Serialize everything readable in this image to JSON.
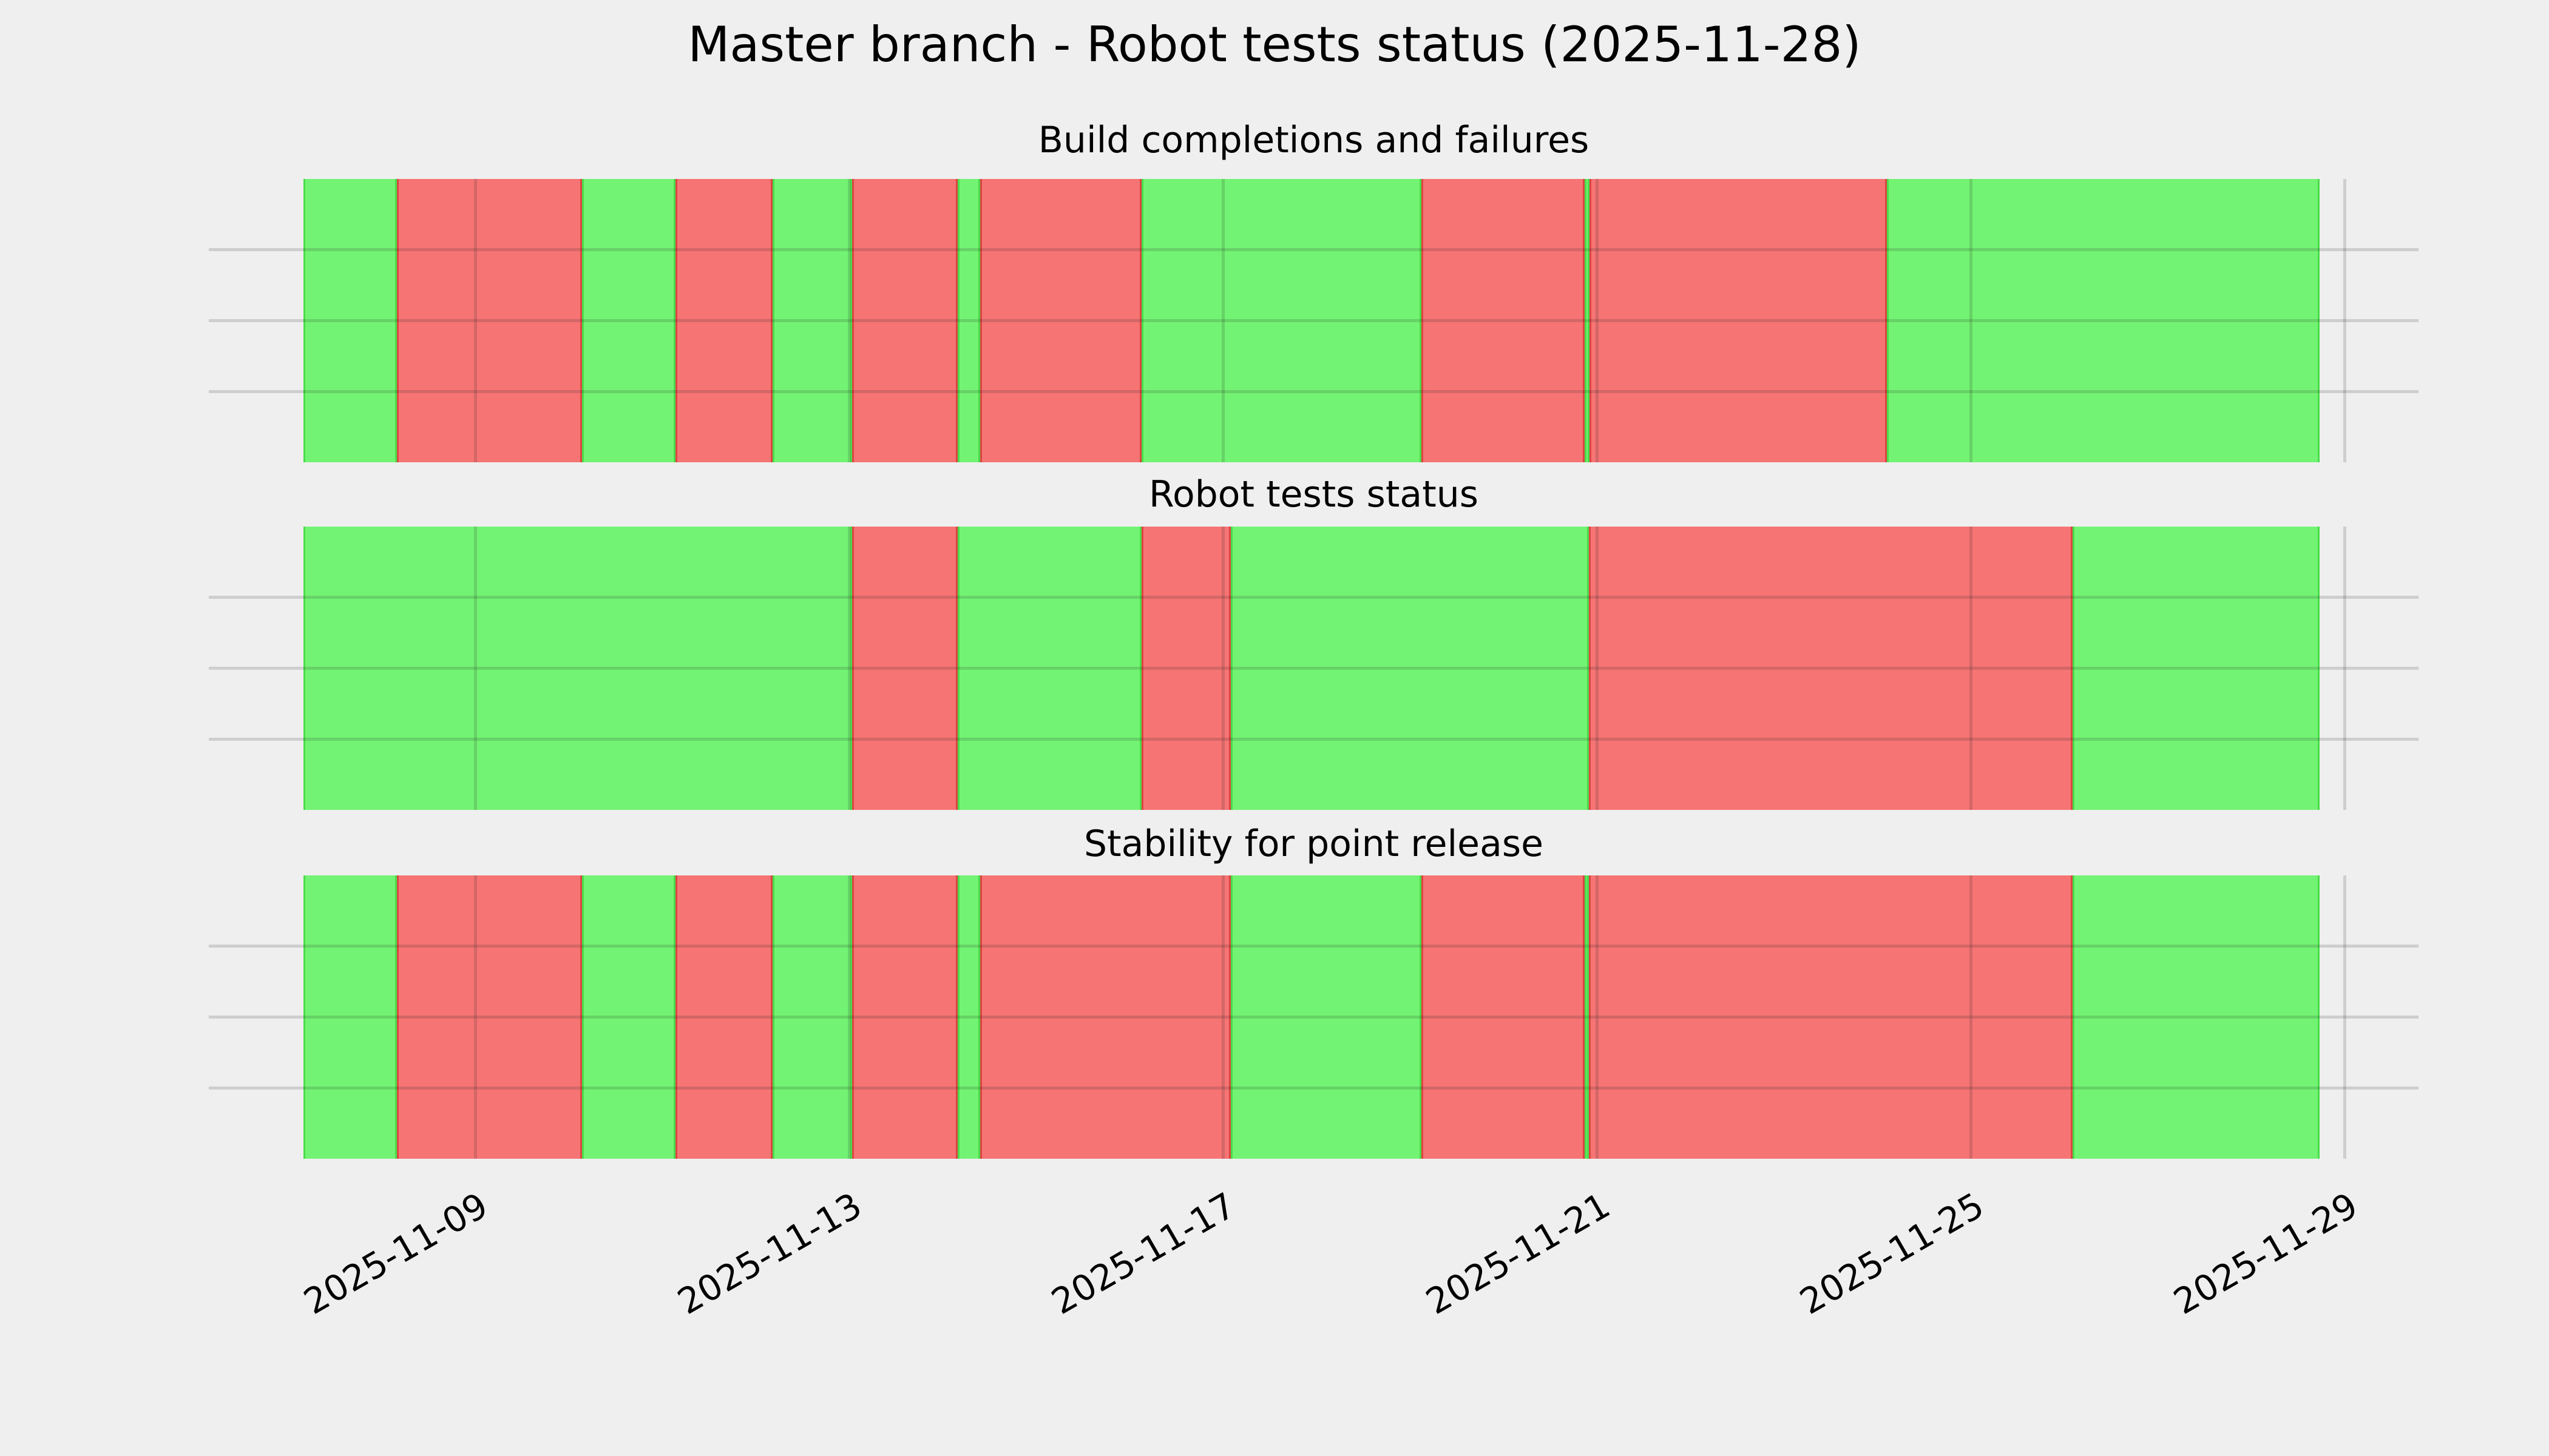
{
  "figure": {
    "title": "Master branch - Robot tests status (2025-11-28)",
    "background_color": "#efefef",
    "gridline_color": "#cbcbcb"
  },
  "chart_data": {
    "type": "bar",
    "subtype": "status-timeline",
    "title": "Master branch - Robot tests status (2025-11-28)",
    "legend_position": "none",
    "grid": true,
    "status_colors": {
      "ok": "#73f373",
      "fail": "#f67474"
    },
    "x_axis": {
      "unit": "date",
      "month": "2025-11",
      "tick_labels": [
        "2025-11-09",
        "2025-11-13",
        "2025-11-17",
        "2025-11-21",
        "2025-11-25",
        "2025-11-29"
      ],
      "tick_days": [
        9,
        13,
        17,
        21,
        25,
        29
      ],
      "tick_label_rotation_deg": 30,
      "data_range_days": [
        7.16,
        28.73
      ],
      "xlim_days": [
        6.14,
        29.79
      ]
    },
    "panels": [
      {
        "title": "Build completions and failures",
        "segments": [
          {
            "status": "ok",
            "start": "2025-11-07 03:50",
            "end": "2025-11-08 03:50",
            "start_day": 7.16,
            "end_day": 8.16
          },
          {
            "status": "fail",
            "start": "2025-11-08 03:50",
            "end": "2025-11-10 03:20",
            "start_day": 8.16,
            "end_day": 10.14
          },
          {
            "status": "ok",
            "start": "2025-11-10 03:20",
            "end": "2025-11-11 03:25",
            "start_day": 10.14,
            "end_day": 11.14
          },
          {
            "status": "fail",
            "start": "2025-11-11 03:25",
            "end": "2025-11-12 04:20",
            "start_day": 11.14,
            "end_day": 12.18
          },
          {
            "status": "ok",
            "start": "2025-11-12 04:20",
            "end": "2025-11-13 00:40",
            "start_day": 12.18,
            "end_day": 13.03
          },
          {
            "status": "fail",
            "start": "2025-11-13 00:40",
            "end": "2025-11-14 03:50",
            "start_day": 13.03,
            "end_day": 14.16
          },
          {
            "status": "ok",
            "start": "2025-11-14 03:50",
            "end": "2025-11-14 09:35",
            "start_day": 14.16,
            "end_day": 14.4
          },
          {
            "status": "fail",
            "start": "2025-11-14 09:35",
            "end": "2025-11-16 03:05",
            "start_day": 14.4,
            "end_day": 16.13
          },
          {
            "status": "ok",
            "start": "2025-11-16 03:05",
            "end": "2025-11-19 02:55",
            "start_day": 16.13,
            "end_day": 19.12
          },
          {
            "status": "fail",
            "start": "2025-11-19 02:55",
            "end": "2025-11-20 20:55",
            "start_day": 19.12,
            "end_day": 20.87
          },
          {
            "status": "ok",
            "start": "2025-11-20 20:55",
            "end": "2025-11-20 22:05",
            "start_day": 20.87,
            "end_day": 20.92
          },
          {
            "status": "fail",
            "start": "2025-11-20 22:05",
            "end": "2025-11-24 02:25",
            "start_day": 20.92,
            "end_day": 24.1
          },
          {
            "status": "ok",
            "start": "2025-11-24 02:25",
            "end": "2025-11-28 17:30",
            "start_day": 24.1,
            "end_day": 28.73
          }
        ]
      },
      {
        "title": "Robot tests status",
        "segments": [
          {
            "status": "ok",
            "start": "2025-11-07 03:50",
            "end": "2025-11-13 00:40",
            "start_day": 7.16,
            "end_day": 13.03
          },
          {
            "status": "fail",
            "start": "2025-11-13 00:40",
            "end": "2025-11-14 03:50",
            "start_day": 13.03,
            "end_day": 14.16
          },
          {
            "status": "ok",
            "start": "2025-11-14 03:50",
            "end": "2025-11-16 03:05",
            "start_day": 14.16,
            "end_day": 16.13
          },
          {
            "status": "fail",
            "start": "2025-11-16 03:05",
            "end": "2025-11-17 01:55",
            "start_day": 16.13,
            "end_day": 17.08
          },
          {
            "status": "ok",
            "start": "2025-11-17 01:55",
            "end": "2025-11-20 21:50",
            "start_day": 17.08,
            "end_day": 20.91
          },
          {
            "status": "fail",
            "start": "2025-11-20 21:50",
            "end": "2025-11-26 02:10",
            "start_day": 20.91,
            "end_day": 26.09
          },
          {
            "status": "ok",
            "start": "2025-11-26 02:10",
            "end": "2025-11-28 17:30",
            "start_day": 26.09,
            "end_day": 28.73
          }
        ]
      },
      {
        "title": "Stability for point release",
        "segments": [
          {
            "status": "ok",
            "start": "2025-11-07 03:50",
            "end": "2025-11-08 03:50",
            "start_day": 7.16,
            "end_day": 8.16
          },
          {
            "status": "fail",
            "start": "2025-11-08 03:50",
            "end": "2025-11-10 03:20",
            "start_day": 8.16,
            "end_day": 10.14
          },
          {
            "status": "ok",
            "start": "2025-11-10 03:20",
            "end": "2025-11-11 03:25",
            "start_day": 10.14,
            "end_day": 11.14
          },
          {
            "status": "fail",
            "start": "2025-11-11 03:25",
            "end": "2025-11-12 04:20",
            "start_day": 11.14,
            "end_day": 12.18
          },
          {
            "status": "ok",
            "start": "2025-11-12 04:20",
            "end": "2025-11-13 00:40",
            "start_day": 12.18,
            "end_day": 13.03
          },
          {
            "status": "fail",
            "start": "2025-11-13 00:40",
            "end": "2025-11-14 03:50",
            "start_day": 13.03,
            "end_day": 14.16
          },
          {
            "status": "ok",
            "start": "2025-11-14 03:50",
            "end": "2025-11-14 09:35",
            "start_day": 14.16,
            "end_day": 14.4
          },
          {
            "status": "fail",
            "start": "2025-11-14 09:35",
            "end": "2025-11-17 01:55",
            "start_day": 14.4,
            "end_day": 17.08
          },
          {
            "status": "ok",
            "start": "2025-11-17 01:55",
            "end": "2025-11-19 02:55",
            "start_day": 17.08,
            "end_day": 19.12
          },
          {
            "status": "fail",
            "start": "2025-11-19 02:55",
            "end": "2025-11-20 20:55",
            "start_day": 19.12,
            "end_day": 20.87
          },
          {
            "status": "ok",
            "start": "2025-11-20 20:55",
            "end": "2025-11-20 21:50",
            "start_day": 20.87,
            "end_day": 20.91
          },
          {
            "status": "fail",
            "start": "2025-11-20 21:50",
            "end": "2025-11-26 02:10",
            "start_day": 20.91,
            "end_day": 26.09
          },
          {
            "status": "ok",
            "start": "2025-11-26 02:10",
            "end": "2025-11-28 17:30",
            "start_day": 26.09,
            "end_day": 28.73
          }
        ]
      }
    ]
  }
}
